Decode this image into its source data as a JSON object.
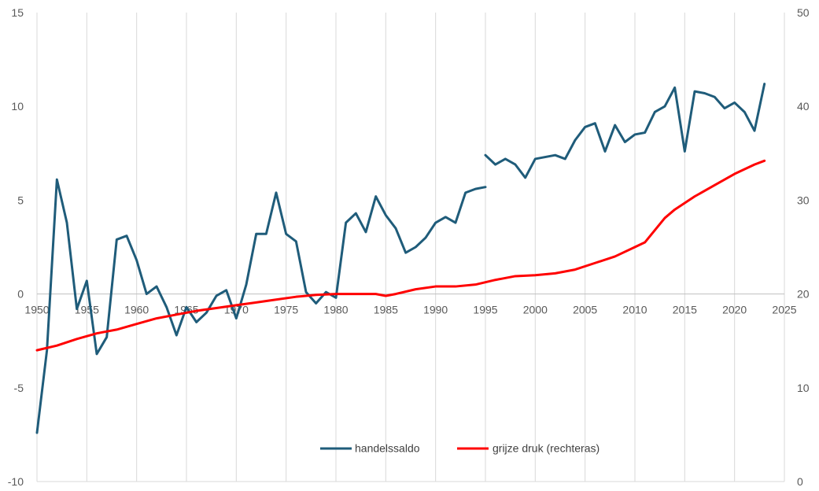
{
  "chart_data": {
    "type": "line",
    "title": "",
    "xlabel": "",
    "ylabel": "",
    "y2label": "",
    "xlim": [
      1950,
      2025
    ],
    "xticks": [
      1950,
      1955,
      1960,
      1965,
      1970,
      1975,
      1980,
      1985,
      1990,
      1995,
      2000,
      2005,
      2010,
      2015,
      2020,
      2025
    ],
    "ylim": [
      -10,
      15
    ],
    "yticks": [
      -10,
      -5,
      0,
      5,
      10,
      15
    ],
    "y2lim": [
      0,
      50
    ],
    "y2ticks": [
      0,
      10,
      20,
      30,
      40,
      50
    ],
    "grid": "vertical gridlines",
    "legend_position": "bottom-center",
    "series": [
      {
        "name": "handelssaldo",
        "axis": "left",
        "color": "#1F5C7A",
        "segments": [
          {
            "x": [
              1950,
              1951,
              1952,
              1953,
              1954,
              1955,
              1956,
              1957,
              1958,
              1959,
              1960,
              1961,
              1962,
              1963,
              1964,
              1965,
              1966,
              1967,
              1968,
              1969,
              1970,
              1971,
              1972,
              1973,
              1974,
              1975,
              1976,
              1977,
              1978,
              1979,
              1980,
              1981,
              1982,
              1983,
              1984,
              1985,
              1986,
              1987,
              1988,
              1989,
              1990,
              1991,
              1992,
              1993,
              1994,
              1995
            ],
            "y": [
              -7.4,
              -3.0,
              6.1,
              3.8,
              -0.8,
              0.7,
              -3.2,
              -2.3,
              2.9,
              3.1,
              1.8,
              0.0,
              0.4,
              -0.7,
              -2.2,
              -0.7,
              -1.5,
              -1.0,
              -0.1,
              0.2,
              -1.3,
              0.5,
              3.2,
              3.2,
              5.4,
              3.2,
              2.8,
              0.1,
              -0.5,
              0.1,
              -0.2,
              3.8,
              4.3,
              3.3,
              5.2,
              4.2,
              3.5,
              2.2,
              2.5,
              3.0,
              3.8,
              4.1,
              3.8,
              5.4,
              5.6,
              5.7
            ]
          },
          {
            "x": [
              1995,
              1996,
              1997,
              1998,
              1999,
              2000,
              2001,
              2002,
              2003,
              2004,
              2005,
              2006,
              2007,
              2008,
              2009,
              2010,
              2011,
              2012,
              2013,
              2014,
              2015,
              2016,
              2017,
              2018,
              2019,
              2020,
              2021,
              2022,
              2023
            ],
            "y": [
              7.4,
              6.9,
              7.2,
              6.9,
              6.2,
              7.2,
              7.3,
              7.4,
              7.2,
              8.2,
              8.9,
              9.1,
              7.6,
              9.0,
              8.1,
              8.5,
              8.6,
              9.7,
              10.0,
              11.0,
              7.6,
              10.8,
              10.7,
              10.5,
              9.9,
              10.2,
              9.7,
              8.7,
              11.2
            ]
          }
        ]
      },
      {
        "name": "grijze druk (rechteras)",
        "axis": "right",
        "color": "#FF0000",
        "x": [
          1950,
          1952,
          1954,
          1956,
          1958,
          1960,
          1962,
          1964,
          1966,
          1968,
          1970,
          1972,
          1974,
          1976,
          1978,
          1980,
          1982,
          1984,
          1985,
          1986,
          1988,
          1990,
          1992,
          1994,
          1996,
          1998,
          2000,
          2002,
          2004,
          2006,
          2008,
          2010,
          2011,
          2012,
          2013,
          2014,
          2015,
          2016,
          2018,
          2020,
          2022,
          2023
        ],
        "y": [
          14.0,
          14.5,
          15.2,
          15.8,
          16.2,
          16.8,
          17.4,
          17.8,
          18.2,
          18.5,
          18.8,
          19.1,
          19.4,
          19.7,
          19.9,
          20.0,
          20.0,
          20.0,
          19.8,
          20.0,
          20.5,
          20.8,
          20.8,
          21.0,
          21.5,
          21.9,
          22.0,
          22.2,
          22.6,
          23.3,
          24.0,
          25.0,
          25.5,
          26.8,
          28.1,
          29.0,
          29.7,
          30.4,
          31.6,
          32.8,
          33.8,
          34.2
        ]
      }
    ]
  }
}
